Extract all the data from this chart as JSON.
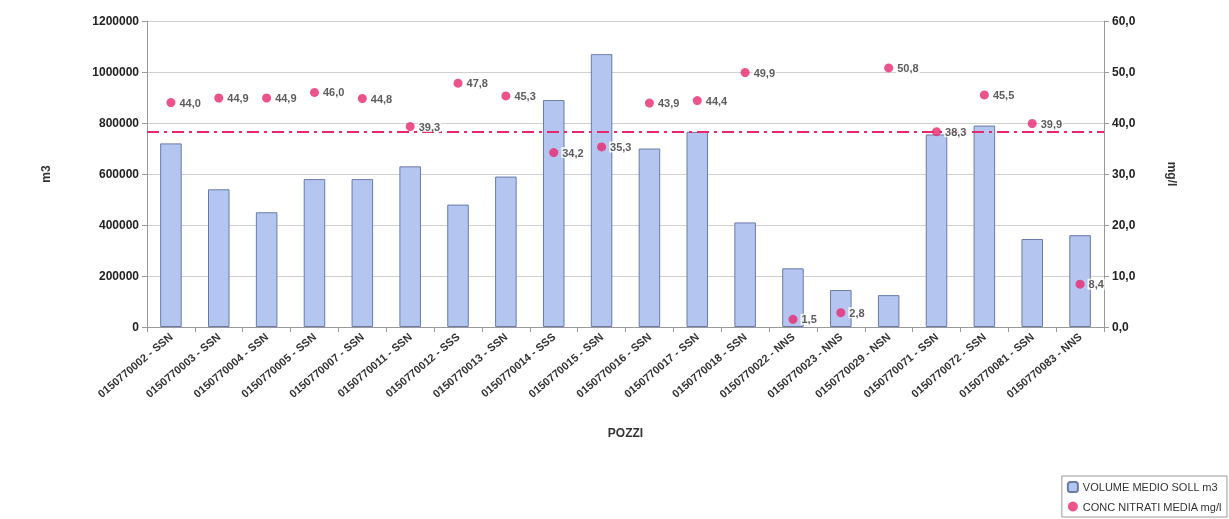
{
  "chart_data": {
    "type": "bar",
    "xlabel": "POZZI",
    "ylabel": "m3",
    "y2label": "mg/l",
    "categories": [
      "0150770002 - SSN",
      "0150770003 - SSN",
      "0150770004 - SSN",
      "0150770005 - SSN",
      "0150770007 - SSN",
      "0150770011 - SSN",
      "0150770012 - SSS",
      "0150770013 - SSN",
      "0150770014 - SSS",
      "0150770015 - SSN",
      "0150770016 - SSN",
      "0150770017 - SSN",
      "0150770018 - SSN",
      "0150770022 - NNS",
      "0150770023 - NNS",
      "0150770029 - NSN",
      "0150770071 - SSN",
      "0150770072 - SSN",
      "0150770081 - SSN",
      "0150770083 - NNS"
    ],
    "series": [
      {
        "name": "VOLUME MEDIO SOLL m3",
        "color": "#b4c6f0",
        "values": [
          720000,
          540000,
          450000,
          580000,
          580000,
          630000,
          480000,
          590000,
          890000,
          1070000,
          700000,
          765000,
          410000,
          230000,
          145000,
          125000,
          755000,
          790000,
          345000,
          360000
        ]
      },
      {
        "name": "CONC NITRATI MEDIA mg/l",
        "type": "scatter",
        "axis": "y2",
        "color": "#e8286e",
        "values": [
          44.0,
          44.9,
          44.9,
          46.0,
          44.8,
          39.3,
          47.8,
          45.3,
          34.2,
          35.3,
          43.9,
          44.4,
          49.9,
          1.5,
          2.8,
          50.8,
          38.3,
          45.5,
          39.9,
          8.4
        ],
        "value_labels": [
          "44,0",
          "44,9",
          "44,9",
          "46,0",
          "44,8",
          "39,3",
          "47,8",
          "45,3",
          "34,2",
          "35,3",
          "43,9",
          "44,4",
          "49,9",
          "1,5",
          "2,8",
          "50,8",
          "38,3",
          "45,5",
          "39,9",
          "8,4"
        ]
      }
    ],
    "ylim": [
      0,
      1200000
    ],
    "yticks": [
      0,
      200000,
      400000,
      600000,
      800000,
      1000000,
      1200000
    ],
    "y2lim": [
      0,
      60
    ],
    "y2ticks": [
      {
        "value": 0,
        "label": "0,0"
      },
      {
        "value": 10,
        "label": "10,0"
      },
      {
        "value": 20,
        "label": "20,0"
      },
      {
        "value": 30,
        "label": "30,0"
      },
      {
        "value": 40,
        "label": "40,0"
      },
      {
        "value": 50,
        "label": "50,0"
      },
      {
        "value": 60,
        "label": "60,0"
      }
    ],
    "ref_lines": [
      {
        "axis": "y2",
        "value": 38.3,
        "color": "#e8286e",
        "line_style": "dashed"
      }
    ],
    "grid": "y",
    "legend": "bottom right",
    "marker": "circle"
  }
}
